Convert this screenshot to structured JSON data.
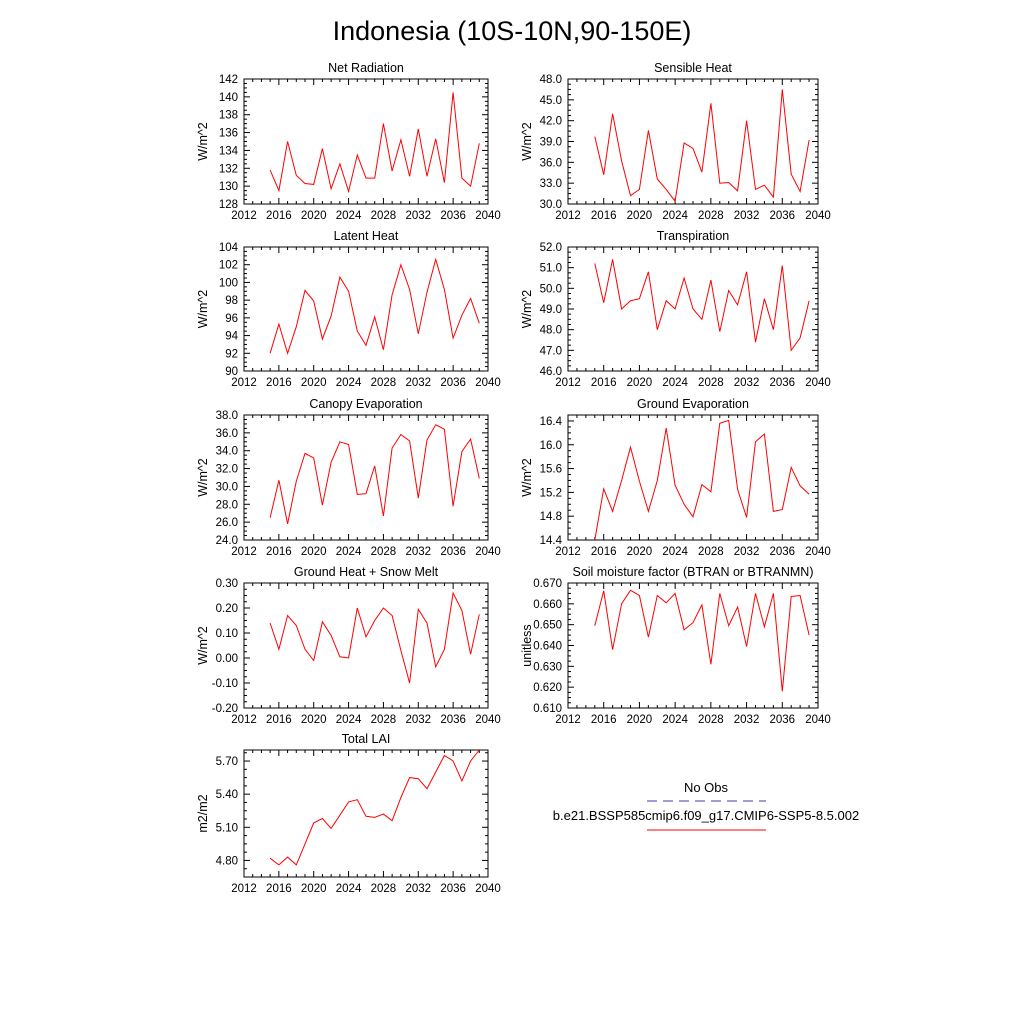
{
  "title": "Indonesia (10S-10N,90-150E)",
  "legend": {
    "entries": [
      {
        "label": "No Obs",
        "color": "#3b3bb3",
        "dash": "dashed"
      },
      {
        "label": "b.e21.BSSP585cmip6.f09_g17.CMIP6-SSP5-8.5.002",
        "color": "#ff0000",
        "dash": "solid"
      }
    ]
  },
  "chart_data": [
    {
      "type": "line",
      "title": "Net Radiation",
      "ylabel": "W/m^2",
      "xlim": [
        2012,
        2040
      ],
      "ylim": [
        128,
        142
      ],
      "x_ticks": [
        2012,
        2016,
        2020,
        2024,
        2028,
        2032,
        2036,
        2040
      ],
      "y_ticks": [
        128,
        130,
        132,
        134,
        136,
        138,
        140,
        142
      ],
      "y_tick_labels": [
        "128",
        "130",
        "132",
        "134",
        "136",
        "138",
        "140",
        "142"
      ],
      "series": [
        {
          "color": "#ff0000",
          "x": [
            2015,
            2016,
            2017,
            2018,
            2019,
            2020,
            2021,
            2022,
            2023,
            2024,
            2025,
            2026,
            2027,
            2028,
            2029,
            2030,
            2031,
            2032,
            2033,
            2034,
            2035,
            2036,
            2037,
            2038,
            2039
          ],
          "values": [
            131.8,
            129.5,
            135.0,
            131.2,
            130.3,
            130.2,
            134.2,
            129.7,
            132.5,
            129.4,
            133.5,
            130.9,
            130.9,
            137.0,
            131.7,
            135.2,
            131.1,
            136.4,
            131.1,
            135.3,
            130.4,
            140.5,
            130.9,
            130.0,
            134.8
          ]
        }
      ]
    },
    {
      "type": "line",
      "title": "Sensible Heat",
      "ylabel": "W/m^2",
      "xlim": [
        2012,
        2040
      ],
      "ylim": [
        30,
        48
      ],
      "x_ticks": [
        2012,
        2016,
        2020,
        2024,
        2028,
        2032,
        2036,
        2040
      ],
      "y_ticks": [
        30,
        33,
        36,
        39,
        42,
        45,
        48
      ],
      "y_tick_labels": [
        "30.0",
        "33.0",
        "36.0",
        "39.0",
        "42.0",
        "45.0",
        "48.0"
      ],
      "series": [
        {
          "color": "#ff0000",
          "x": [
            2015,
            2016,
            2017,
            2018,
            2019,
            2020,
            2021,
            2022,
            2023,
            2024,
            2025,
            2026,
            2027,
            2028,
            2029,
            2030,
            2031,
            2032,
            2033,
            2034,
            2035,
            2036,
            2037,
            2038,
            2039
          ],
          "values": [
            39.7,
            34.2,
            43.0,
            36.2,
            31.2,
            32.1,
            40.6,
            33.6,
            32.1,
            30.4,
            38.8,
            38.0,
            34.6,
            44.5,
            33.0,
            33.1,
            31.9,
            42.0,
            32.1,
            32.7,
            31.0,
            46.5,
            34.3,
            31.8,
            39.2
          ]
        }
      ]
    },
    {
      "type": "line",
      "title": "Latent Heat",
      "ylabel": "W/m^2",
      "xlim": [
        2012,
        2040
      ],
      "ylim": [
        90,
        104
      ],
      "x_ticks": [
        2012,
        2016,
        2020,
        2024,
        2028,
        2032,
        2036,
        2040
      ],
      "y_ticks": [
        90,
        92,
        94,
        96,
        98,
        100,
        102,
        104
      ],
      "y_tick_labels": [
        "90",
        "92",
        "94",
        "96",
        "98",
        "100",
        "102",
        "104"
      ],
      "series": [
        {
          "color": "#ff0000",
          "x": [
            2015,
            2016,
            2017,
            2018,
            2019,
            2020,
            2021,
            2022,
            2023,
            2024,
            2025,
            2026,
            2027,
            2028,
            2029,
            2030,
            2031,
            2032,
            2033,
            2034,
            2035,
            2036,
            2037,
            2038,
            2039
          ],
          "values": [
            92.0,
            95.3,
            92.0,
            95.0,
            99.1,
            97.9,
            93.6,
            96.2,
            100.6,
            99.0,
            94.5,
            92.9,
            96.1,
            92.4,
            98.6,
            102.0,
            99.2,
            94.2,
            98.9,
            102.6,
            99.2,
            93.7,
            96.3,
            98.2,
            95.4
          ]
        }
      ]
    },
    {
      "type": "line",
      "title": "Transpiration",
      "ylabel": "W/m^2",
      "xlim": [
        2012,
        2040
      ],
      "ylim": [
        46,
        52
      ],
      "x_ticks": [
        2012,
        2016,
        2020,
        2024,
        2028,
        2032,
        2036,
        2040
      ],
      "y_ticks": [
        46,
        47,
        48,
        49,
        50,
        51,
        52
      ],
      "y_tick_labels": [
        "46.0",
        "47.0",
        "48.0",
        "49.0",
        "50.0",
        "51.0",
        "52.0"
      ],
      "series": [
        {
          "color": "#ff0000",
          "x": [
            2015,
            2016,
            2017,
            2018,
            2019,
            2020,
            2021,
            2022,
            2023,
            2024,
            2025,
            2026,
            2027,
            2028,
            2029,
            2030,
            2031,
            2032,
            2033,
            2034,
            2035,
            2036,
            2037,
            2038,
            2039
          ],
          "values": [
            51.2,
            49.3,
            51.4,
            49.0,
            49.4,
            49.5,
            50.8,
            48.0,
            49.4,
            49.0,
            50.5,
            49.0,
            48.5,
            50.4,
            47.9,
            49.9,
            49.2,
            50.8,
            47.4,
            49.5,
            48.0,
            51.1,
            47.0,
            47.6,
            49.4
          ]
        }
      ]
    },
    {
      "type": "line",
      "title": "Canopy Evaporation",
      "ylabel": "W/m^2",
      "xlim": [
        2012,
        2040
      ],
      "ylim": [
        24,
        38
      ],
      "x_ticks": [
        2012,
        2016,
        2020,
        2024,
        2028,
        2032,
        2036,
        2040
      ],
      "y_ticks": [
        24,
        26,
        28,
        30,
        32,
        34,
        36,
        38
      ],
      "y_tick_labels": [
        "24.0",
        "26.0",
        "28.0",
        "30.0",
        "32.0",
        "34.0",
        "36.0",
        "38.0"
      ],
      "series": [
        {
          "color": "#ff0000",
          "x": [
            2015,
            2016,
            2017,
            2018,
            2019,
            2020,
            2021,
            2022,
            2023,
            2024,
            2025,
            2026,
            2027,
            2028,
            2029,
            2030,
            2031,
            2032,
            2033,
            2034,
            2035,
            2036,
            2037,
            2038,
            2039
          ],
          "values": [
            26.5,
            30.7,
            25.8,
            30.6,
            33.7,
            33.2,
            27.9,
            32.7,
            35.0,
            34.7,
            29.1,
            29.2,
            32.3,
            26.7,
            34.3,
            35.8,
            35.1,
            28.7,
            35.2,
            36.9,
            36.4,
            27.8,
            33.9,
            35.3,
            30.9
          ]
        }
      ]
    },
    {
      "type": "line",
      "title": "Ground Evaporation",
      "ylabel": "W/m^2",
      "xlim": [
        2012,
        2040
      ],
      "ylim": [
        14.4,
        16.5
      ],
      "x_ticks": [
        2012,
        2016,
        2020,
        2024,
        2028,
        2032,
        2036,
        2040
      ],
      "y_ticks": [
        14.4,
        14.8,
        15.2,
        15.6,
        16.0,
        16.4
      ],
      "y_tick_labels": [
        "14.4",
        "14.8",
        "15.2",
        "15.6",
        "16.0",
        "16.4"
      ],
      "series": [
        {
          "color": "#ff0000",
          "x": [
            2015,
            2016,
            2017,
            2018,
            2019,
            2020,
            2021,
            2022,
            2023,
            2024,
            2025,
            2026,
            2027,
            2028,
            2029,
            2030,
            2031,
            2032,
            2033,
            2034,
            2035,
            2036,
            2037,
            2038,
            2039
          ],
          "values": [
            14.4,
            15.26,
            14.88,
            15.4,
            15.96,
            15.39,
            14.88,
            15.4,
            16.28,
            15.32,
            15.0,
            14.79,
            15.33,
            15.21,
            16.36,
            16.41,
            15.25,
            14.78,
            16.05,
            16.18,
            14.88,
            14.91,
            15.62,
            15.31,
            15.17
          ]
        }
      ]
    },
    {
      "type": "line",
      "title": "Ground Heat + Snow Melt",
      "ylabel": "W/m^2",
      "xlim": [
        2012,
        2040
      ],
      "ylim": [
        -0.2,
        0.3
      ],
      "x_ticks": [
        2012,
        2016,
        2020,
        2024,
        2028,
        2032,
        2036,
        2040
      ],
      "y_ticks": [
        -0.2,
        -0.1,
        0.0,
        0.1,
        0.2,
        0.3
      ],
      "y_tick_labels": [
        "-0.20",
        "-0.10",
        "0.00",
        "0.10",
        "0.20",
        "0.30"
      ],
      "series": [
        {
          "color": "#ff0000",
          "x": [
            2015,
            2016,
            2017,
            2018,
            2019,
            2020,
            2021,
            2022,
            2023,
            2024,
            2025,
            2026,
            2027,
            2028,
            2029,
            2030,
            2031,
            2032,
            2033,
            2034,
            2035,
            2036,
            2037,
            2038,
            2039
          ],
          "values": [
            0.14,
            0.035,
            0.17,
            0.13,
            0.035,
            -0.01,
            0.145,
            0.09,
            0.005,
            0.0,
            0.2,
            0.085,
            0.15,
            0.2,
            0.17,
            0.03,
            -0.1,
            0.195,
            0.14,
            -0.035,
            0.035,
            0.26,
            0.19,
            0.015,
            0.175
          ]
        }
      ]
    },
    {
      "type": "line",
      "title": "Soil moisture factor (BTRAN or BTRANMN)",
      "ylabel": "unitless",
      "xlim": [
        2012,
        2040
      ],
      "ylim": [
        0.61,
        0.67
      ],
      "x_ticks": [
        2012,
        2016,
        2020,
        2024,
        2028,
        2032,
        2036,
        2040
      ],
      "y_ticks": [
        0.61,
        0.62,
        0.63,
        0.64,
        0.65,
        0.66,
        0.67
      ],
      "y_tick_labels": [
        "0.610",
        "0.620",
        "0.630",
        "0.640",
        "0.650",
        "0.660",
        "0.670"
      ],
      "series": [
        {
          "color": "#ff0000",
          "x": [
            2015,
            2016,
            2017,
            2018,
            2019,
            2020,
            2021,
            2022,
            2023,
            2024,
            2025,
            2026,
            2027,
            2028,
            2029,
            2030,
            2031,
            2032,
            2033,
            2034,
            2035,
            2036,
            2037,
            2038,
            2039
          ],
          "values": [
            0.6495,
            0.6663,
            0.638,
            0.66,
            0.6665,
            0.664,
            0.644,
            0.664,
            0.6605,
            0.665,
            0.6475,
            0.651,
            0.6595,
            0.631,
            0.665,
            0.6495,
            0.6585,
            0.6395,
            0.665,
            0.649,
            0.665,
            0.618,
            0.6635,
            0.664,
            0.645
          ]
        }
      ]
    },
    {
      "type": "line",
      "title": "Total LAI",
      "ylabel": "m2/m2",
      "xlim": [
        2012,
        2040
      ],
      "ylim": [
        4.65,
        5.8
      ],
      "x_ticks": [
        2012,
        2016,
        2020,
        2024,
        2028,
        2032,
        2036,
        2040
      ],
      "y_ticks": [
        4.8,
        5.1,
        5.4,
        5.7
      ],
      "y_tick_labels": [
        "4.80",
        "5.10",
        "5.40",
        "5.70"
      ],
      "series": [
        {
          "color": "#ff0000",
          "x": [
            2015,
            2016,
            2017,
            2018,
            2019,
            2020,
            2021,
            2022,
            2023,
            2024,
            2025,
            2026,
            2027,
            2028,
            2029,
            2030,
            2031,
            2032,
            2033,
            2034,
            2035,
            2036,
            2037,
            2038,
            2039
          ],
          "values": [
            4.82,
            4.76,
            4.83,
            4.76,
            4.95,
            5.14,
            5.18,
            5.09,
            5.21,
            5.33,
            5.35,
            5.2,
            5.19,
            5.22,
            5.16,
            5.37,
            5.55,
            5.54,
            5.45,
            5.6,
            5.75,
            5.7,
            5.52,
            5.7,
            5.8
          ]
        }
      ]
    }
  ]
}
